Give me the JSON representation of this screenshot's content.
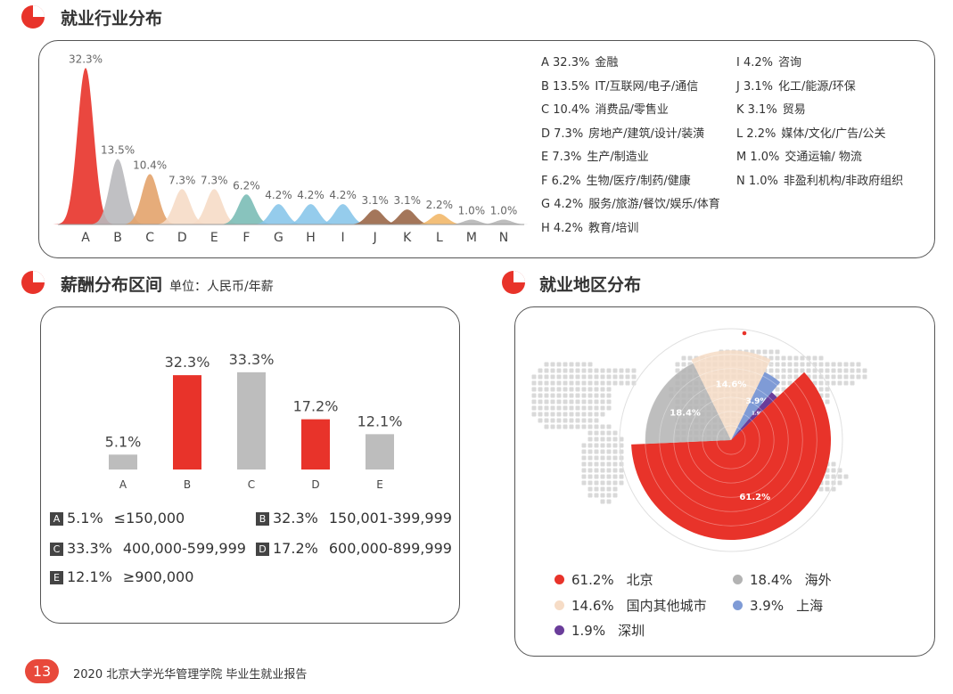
{
  "sections": {
    "industry": {
      "title": "就业行业分布"
    },
    "salary": {
      "title": "薪酬分布区间",
      "subtitle": "单位：人民币/年薪"
    },
    "region": {
      "title": "就业地区分布"
    }
  },
  "footer": {
    "page_number": "13",
    "text": "2020 北京大学光华管理学院 毕业生就业报告"
  },
  "colors": {
    "accent_red": "#e8493b",
    "gray": "#bdbdbd",
    "peach": "#f6dcc6",
    "blue": "#8eaadb",
    "purple": "#6a3d9a"
  },
  "chart_data": [
    {
      "type": "area",
      "id": "industry",
      "title": "就业行业分布",
      "categories": [
        "A",
        "B",
        "C",
        "D",
        "E",
        "F",
        "G",
        "H",
        "I",
        "J",
        "K",
        "L",
        "M",
        "N"
      ],
      "values": [
        32.3,
        13.5,
        10.4,
        7.3,
        7.3,
        6.2,
        4.2,
        4.2,
        4.2,
        3.1,
        3.1,
        2.2,
        1.0,
        1.0
      ],
      "value_labels": [
        "32.3%",
        "13.5%",
        "10.4%",
        "7.3%",
        "7.3%",
        "6.2%",
        "4.2%",
        "4.2%",
        "4.2%",
        "3.1%",
        "3.1%",
        "2.2%",
        "1.0%",
        "1.0%"
      ],
      "colors": [
        "#e8332a",
        "#b9b9bd",
        "#e3a36b",
        "#f6dcc6",
        "#f6dcc6",
        "#7bbdb6",
        "#8ac6ea",
        "#8ac6ea",
        "#8ac6ea",
        "#9a6748",
        "#9a6748",
        "#f2b86a",
        "#b6b6b6",
        "#b6b6b6"
      ],
      "ylim": [
        0,
        34
      ],
      "legend": [
        {
          "code": "A 32.3%",
          "name": "金融"
        },
        {
          "code": "B 13.5%",
          "name": "IT/互联网/电子/通信"
        },
        {
          "code": "C 10.4%",
          "name": "消费品/零售业"
        },
        {
          "code": "D 7.3%",
          "name": "房地产/建筑/设计/装潢"
        },
        {
          "code": "E 7.3%",
          "name": "生产/制造业"
        },
        {
          "code": "F 6.2%",
          "name": "生物/医疗/制药/健康"
        },
        {
          "code": "G 4.2%",
          "name": "服务/旅游/餐饮/娱乐/体育"
        },
        {
          "code": "H 4.2%",
          "name": "教育/培训"
        },
        {
          "code": "I 4.2%",
          "name": "咨询"
        },
        {
          "code": "J 3.1%",
          "name": "化工/能源/环保"
        },
        {
          "code": "K 3.1%",
          "name": "贸易"
        },
        {
          "code": "L 2.2%",
          "name": "媒体/文化/广告/公关"
        },
        {
          "code": "M 1.0%",
          "name": "交通运输/ 物流"
        },
        {
          "code": "N 1.0%",
          "name": "非盈利机构/非政府组织"
        }
      ],
      "legend_placement": "right"
    },
    {
      "type": "bar",
      "id": "salary",
      "title": "薪酬分布区间",
      "subtitle": "单位：人民币/年薪",
      "categories": [
        "A",
        "B",
        "C",
        "D",
        "E"
      ],
      "values": [
        5.1,
        32.3,
        33.3,
        17.2,
        12.1
      ],
      "value_labels": [
        "5.1%",
        "32.3%",
        "33.3%",
        "17.2%",
        "12.1%"
      ],
      "colors": [
        "#bdbdbd",
        "#e8332a",
        "#bdbdbd",
        "#e8332a",
        "#bdbdbd"
      ],
      "ylim": [
        0,
        36
      ],
      "legend": [
        {
          "code": "A",
          "pct": "5.1%",
          "range": "≤150,000"
        },
        {
          "code": "B",
          "pct": "32.3%",
          "range": "150,001-399,999"
        },
        {
          "code": "C",
          "pct": "33.3%",
          "range": "400,000-599,999"
        },
        {
          "code": "D",
          "pct": "17.2%",
          "range": "600,000-899,999"
        },
        {
          "code": "E",
          "pct": "12.1%",
          "range": "≥900,000"
        }
      ],
      "legend_placement": "bottom"
    },
    {
      "type": "pie",
      "id": "region",
      "title": "就业地区分布",
      "labels": [
        "北京",
        "海外",
        "国内其他城市",
        "上海",
        "深圳"
      ],
      "values": [
        61.2,
        18.4,
        14.6,
        3.9,
        1.9
      ],
      "value_labels": [
        "61.2%",
        "18.4%",
        "14.6%",
        "3.9%",
        "1.9%"
      ],
      "colors": [
        "#e8332a",
        "#b3b3b3",
        "#f6dcc6",
        "#7f9bd6",
        "#6a3d9a"
      ],
      "radii": [
        1.0,
        0.86,
        0.9,
        0.76,
        0.63
      ],
      "legend_placement": "bottom"
    }
  ]
}
